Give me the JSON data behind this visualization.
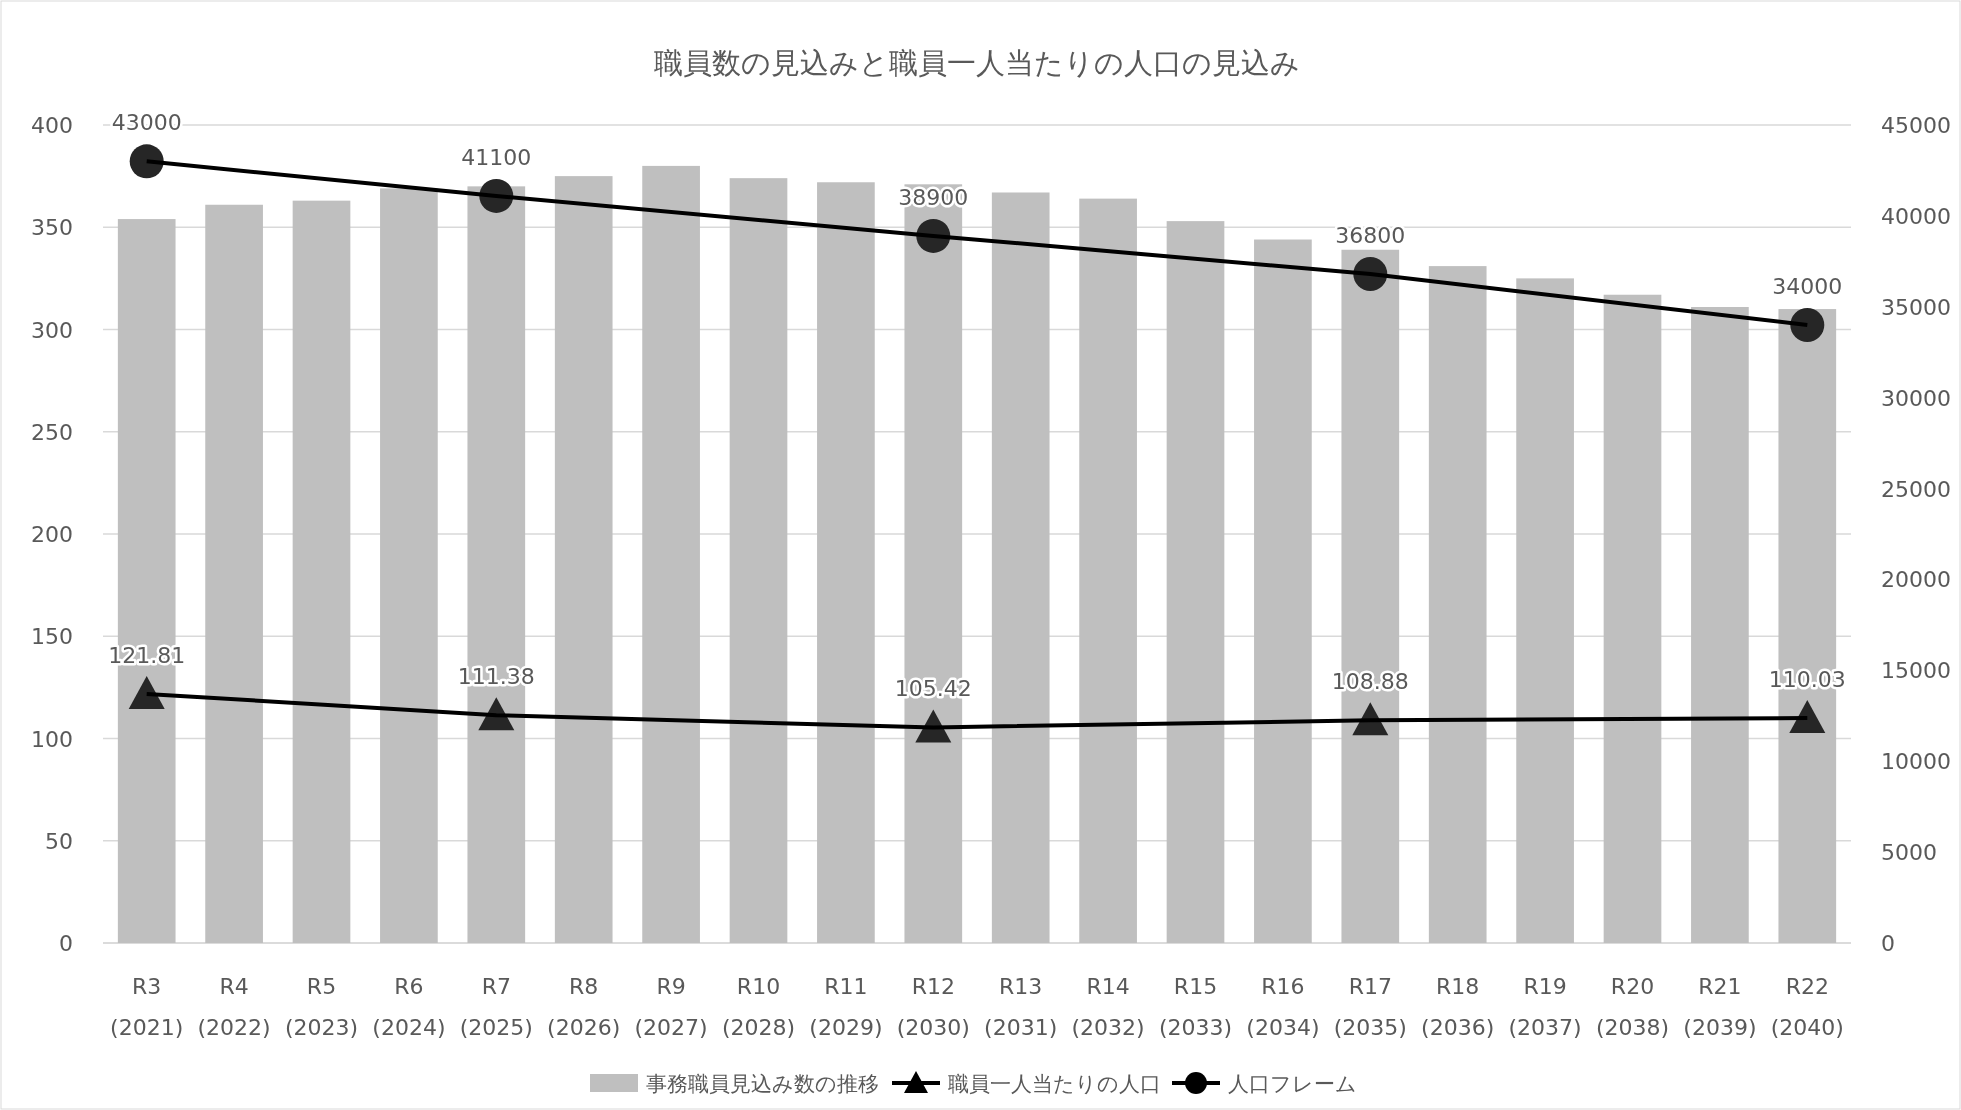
{
  "chart_data": {
    "type": "bar",
    "title": "職員数の見込みと職員一人当たりの人口の見込み",
    "categories": [
      "R3\n(2021)",
      "R4\n(2022)",
      "R5\n(2023)",
      "R6\n(2024)",
      "R7\n(2025)",
      "R8\n(2026)",
      "R9\n(2027)",
      "R10\n(2028)",
      "R11\n(2029)",
      "R12\n(2030)",
      "R13\n(2031)",
      "R14\n(2032)",
      "R15\n(2033)",
      "R16\n(2034)",
      "R17\n(2035)",
      "R18\n(2036)",
      "R19\n(2037)",
      "R20\n(2038)",
      "R21\n(2039)",
      "R22\n(2040)"
    ],
    "series": [
      {
        "name": "事務職員見込み数の推移",
        "color": "#bfbfbf",
        "values": [
          354,
          361,
          363,
          369,
          370,
          375,
          380,
          374,
          372,
          371,
          367,
          364,
          353,
          344,
          339,
          331,
          325,
          317,
          311,
          310
        ]
      },
      {
        "name": "職員一人当たりの人口",
        "type": "line",
        "color": "#000000",
        "marker": "triangle",
        "values": [
          121.81,
          null,
          null,
          null,
          111.38,
          null,
          null,
          null,
          null,
          105.42,
          null,
          null,
          null,
          null,
          108.88,
          null,
          null,
          null,
          null,
          110.03
        ],
        "value_labels": [
          "121.81",
          null,
          null,
          null,
          "111.38",
          null,
          null,
          null,
          null,
          "105.42",
          null,
          null,
          null,
          null,
          "108.88",
          null,
          null,
          null,
          null,
          "110.03"
        ]
      },
      {
        "name": "人口フレーム",
        "type": "line",
        "axis": "y2",
        "color": "#000000",
        "marker": "circle",
        "values": [
          43000,
          null,
          null,
          null,
          41100,
          null,
          null,
          null,
          null,
          38900,
          null,
          null,
          null,
          null,
          36800,
          null,
          null,
          null,
          null,
          34000
        ],
        "value_labels": [
          "43000",
          null,
          null,
          null,
          "41100",
          null,
          null,
          null,
          null,
          "38900",
          null,
          null,
          null,
          null,
          "36800",
          null,
          null,
          null,
          null,
          "34000"
        ]
      }
    ],
    "ylim": [
      0,
      400
    ],
    "yticks": [
      0,
      50,
      100,
      150,
      200,
      250,
      300,
      350,
      400
    ],
    "y2lim": [
      0,
      45000
    ],
    "y2ticks": [
      0,
      5000,
      10000,
      15000,
      20000,
      25000,
      30000,
      35000,
      40000,
      45000
    ],
    "grid": "y",
    "legend": "bottom"
  }
}
